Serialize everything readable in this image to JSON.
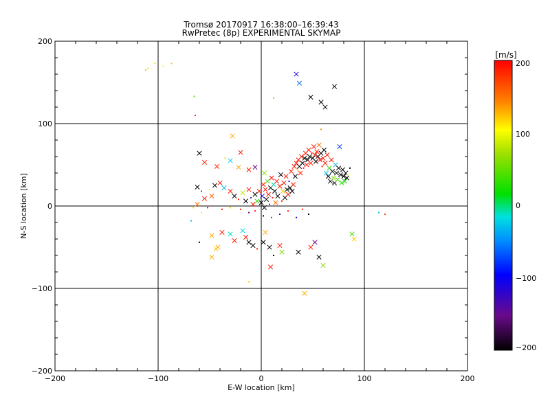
{
  "chart_data": {
    "type": "scatter",
    "title": "Tromsø 20170917 16:38:00–16:39:43",
    "subtitle": "RwPretec (8p) EXPERIMENTAL SKYMAP",
    "xlabel": "E-W location [km]",
    "ylabel": "N-S location [km]",
    "xlim": [
      -200,
      200
    ],
    "ylim": [
      -200,
      200
    ],
    "xticks": [
      "−200",
      "−100",
      "0",
      "100",
      "200"
    ],
    "yticks": [
      "−200",
      "−100",
      "0",
      "100",
      "200"
    ],
    "grid": true,
    "colorbar": {
      "label": "[m/s]",
      "range": [
        -200,
        200
      ],
      "ticks": [
        "200",
        "100",
        "0",
        "−100",
        "−200"
      ]
    },
    "points": [
      {
        "x": -112,
        "y": 165,
        "v": 120,
        "m": "dot"
      },
      {
        "x": -110,
        "y": 167,
        "v": 90,
        "m": "dot"
      },
      {
        "x": -103,
        "y": 173,
        "v": 110,
        "m": "dot"
      },
      {
        "x": -95,
        "y": 170,
        "v": 100,
        "m": "dot"
      },
      {
        "x": -87,
        "y": 173,
        "v": 120,
        "m": "dot"
      },
      {
        "x": -65,
        "y": 133,
        "v": 50,
        "m": "dot"
      },
      {
        "x": -64,
        "y": 110,
        "v": 180,
        "m": "dot"
      },
      {
        "x": 12,
        "y": 131,
        "v": 60,
        "m": "dot"
      },
      {
        "x": 34,
        "y": 160,
        "v": -110,
        "m": "x"
      },
      {
        "x": 37,
        "y": 149,
        "v": -60,
        "m": "x"
      },
      {
        "x": 48,
        "y": 132,
        "v": -200,
        "m": "x"
      },
      {
        "x": 58,
        "y": 126,
        "v": -200,
        "m": "x"
      },
      {
        "x": 62,
        "y": 120,
        "v": -200,
        "m": "x"
      },
      {
        "x": 71,
        "y": 145,
        "v": -200,
        "m": "x"
      },
      {
        "x": 58,
        "y": 93,
        "v": 140,
        "m": "dot"
      },
      {
        "x": -60,
        "y": 64,
        "v": -200,
        "m": "x"
      },
      {
        "x": -55,
        "y": 53,
        "v": 190,
        "m": "x"
      },
      {
        "x": -28,
        "y": 85,
        "v": 130,
        "m": "x"
      },
      {
        "x": -20,
        "y": 65,
        "v": 190,
        "m": "x"
      },
      {
        "x": -35,
        "y": 58,
        "v": 120,
        "m": "dot"
      },
      {
        "x": -30,
        "y": 55,
        "v": -20,
        "m": "x"
      },
      {
        "x": -43,
        "y": 48,
        "v": 190,
        "m": "x"
      },
      {
        "x": -22,
        "y": 47,
        "v": 130,
        "m": "x"
      },
      {
        "x": -12,
        "y": 44,
        "v": 190,
        "m": "x"
      },
      {
        "x": -6,
        "y": 47,
        "v": -150,
        "m": "x"
      },
      {
        "x": 3,
        "y": 40,
        "v": 60,
        "m": "x"
      },
      {
        "x": -62,
        "y": 23,
        "v": -200,
        "m": "x"
      },
      {
        "x": -58,
        "y": 18,
        "v": 190,
        "m": "dot"
      },
      {
        "x": -50,
        "y": 20,
        "v": 100,
        "m": "dot"
      },
      {
        "x": -48,
        "y": 12,
        "v": 160,
        "m": "x"
      },
      {
        "x": -55,
        "y": 9,
        "v": 190,
        "m": "x"
      },
      {
        "x": -45,
        "y": 25,
        "v": -200,
        "m": "x"
      },
      {
        "x": -40,
        "y": 28,
        "v": 190,
        "m": "x"
      },
      {
        "x": -36,
        "y": 22,
        "v": -30,
        "m": "x"
      },
      {
        "x": -30,
        "y": 18,
        "v": 190,
        "m": "x"
      },
      {
        "x": -26,
        "y": 12,
        "v": -200,
        "m": "x"
      },
      {
        "x": -22,
        "y": 8,
        "v": 190,
        "m": "dot"
      },
      {
        "x": -18,
        "y": 16,
        "v": 80,
        "m": "x"
      },
      {
        "x": -15,
        "y": 6,
        "v": -200,
        "m": "x"
      },
      {
        "x": -12,
        "y": 20,
        "v": 190,
        "m": "x"
      },
      {
        "x": -10,
        "y": 10,
        "v": -150,
        "m": "dot"
      },
      {
        "x": -8,
        "y": 2,
        "v": 190,
        "m": "x"
      },
      {
        "x": -6,
        "y": 14,
        "v": -200,
        "m": "x"
      },
      {
        "x": -4,
        "y": 6,
        "v": 30,
        "m": "x"
      },
      {
        "x": -2,
        "y": 18,
        "v": 190,
        "m": "x"
      },
      {
        "x": 0,
        "y": 4,
        "v": -200,
        "m": "x"
      },
      {
        "x": 1,
        "y": 12,
        "v": -120,
        "m": "x"
      },
      {
        "x": 2,
        "y": 26,
        "v": 190,
        "m": "x"
      },
      {
        "x": 3,
        "y": -2,
        "v": -200,
        "m": "x"
      },
      {
        "x": 4,
        "y": 20,
        "v": 190,
        "m": "x"
      },
      {
        "x": 5,
        "y": 8,
        "v": -200,
        "m": "x"
      },
      {
        "x": 6,
        "y": 30,
        "v": 40,
        "m": "x"
      },
      {
        "x": 7,
        "y": 14,
        "v": 190,
        "m": "x"
      },
      {
        "x": 8,
        "y": 2,
        "v": -80,
        "m": "dot"
      },
      {
        "x": 9,
        "y": 22,
        "v": -200,
        "m": "x"
      },
      {
        "x": 10,
        "y": 34,
        "v": 190,
        "m": "x"
      },
      {
        "x": 11,
        "y": 10,
        "v": 190,
        "m": "dot"
      },
      {
        "x": 12,
        "y": 26,
        "v": -10,
        "m": "x"
      },
      {
        "x": 13,
        "y": 18,
        "v": -200,
        "m": "x"
      },
      {
        "x": 14,
        "y": 4,
        "v": 150,
        "m": "x"
      },
      {
        "x": 15,
        "y": 30,
        "v": 190,
        "m": "x"
      },
      {
        "x": 16,
        "y": 12,
        "v": -200,
        "m": "x"
      },
      {
        "x": 18,
        "y": 24,
        "v": 190,
        "m": "x"
      },
      {
        "x": 19,
        "y": 38,
        "v": -200,
        "m": "x"
      },
      {
        "x": 20,
        "y": 6,
        "v": 190,
        "m": "dot"
      },
      {
        "x": 21,
        "y": 18,
        "v": 120,
        "m": "x"
      },
      {
        "x": 22,
        "y": 28,
        "v": 190,
        "m": "x"
      },
      {
        "x": 23,
        "y": 10,
        "v": -200,
        "m": "x"
      },
      {
        "x": 24,
        "y": 36,
        "v": 190,
        "m": "x"
      },
      {
        "x": 25,
        "y": 20,
        "v": -200,
        "m": "x"
      },
      {
        "x": 26,
        "y": 14,
        "v": 190,
        "m": "x"
      },
      {
        "x": 27,
        "y": 30,
        "v": -130,
        "m": "dot"
      },
      {
        "x": 28,
        "y": 22,
        "v": -200,
        "m": "x"
      },
      {
        "x": 29,
        "y": 42,
        "v": 190,
        "m": "x"
      },
      {
        "x": 30,
        "y": 18,
        "v": -200,
        "m": "x"
      },
      {
        "x": 31,
        "y": 26,
        "v": 190,
        "m": "x"
      },
      {
        "x": 32,
        "y": 48,
        "v": 190,
        "m": "x"
      },
      {
        "x": 33,
        "y": 36,
        "v": -200,
        "m": "x"
      },
      {
        "x": 34,
        "y": 52,
        "v": 190,
        "m": "x"
      },
      {
        "x": 35,
        "y": 44,
        "v": 120,
        "m": "dot"
      },
      {
        "x": 36,
        "y": 56,
        "v": 190,
        "m": "x"
      },
      {
        "x": 37,
        "y": 48,
        "v": -200,
        "m": "x"
      },
      {
        "x": 38,
        "y": 40,
        "v": 190,
        "m": "x"
      },
      {
        "x": 39,
        "y": 60,
        "v": 190,
        "m": "x"
      },
      {
        "x": 40,
        "y": 52,
        "v": -200,
        "m": "x"
      },
      {
        "x": 41,
        "y": 46,
        "v": 190,
        "m": "dot"
      },
      {
        "x": 42,
        "y": 58,
        "v": -200,
        "m": "x"
      },
      {
        "x": 43,
        "y": 64,
        "v": 190,
        "m": "x"
      },
      {
        "x": 44,
        "y": 50,
        "v": 190,
        "m": "x"
      },
      {
        "x": 45,
        "y": 56,
        "v": -200,
        "m": "x"
      },
      {
        "x": 46,
        "y": 68,
        "v": 190,
        "m": "x"
      },
      {
        "x": 47,
        "y": 60,
        "v": -200,
        "m": "x"
      },
      {
        "x": 48,
        "y": 52,
        "v": 190,
        "m": "x"
      },
      {
        "x": 49,
        "y": 64,
        "v": 190,
        "m": "dot"
      },
      {
        "x": 50,
        "y": 58,
        "v": -200,
        "m": "x"
      },
      {
        "x": 51,
        "y": 72,
        "v": 190,
        "m": "x"
      },
      {
        "x": 52,
        "y": 62,
        "v": 190,
        "m": "x"
      },
      {
        "x": 53,
        "y": 54,
        "v": -200,
        "m": "x"
      },
      {
        "x": 54,
        "y": 66,
        "v": 190,
        "m": "x"
      },
      {
        "x": 55,
        "y": 60,
        "v": -200,
        "m": "x"
      },
      {
        "x": 56,
        "y": 74,
        "v": 150,
        "m": "x"
      },
      {
        "x": 57,
        "y": 56,
        "v": 190,
        "m": "x"
      },
      {
        "x": 58,
        "y": 64,
        "v": -200,
        "m": "x"
      },
      {
        "x": 59,
        "y": 48,
        "v": 190,
        "m": "dot"
      },
      {
        "x": 60,
        "y": 58,
        "v": 190,
        "m": "x"
      },
      {
        "x": 61,
        "y": 68,
        "v": -200,
        "m": "x"
      },
      {
        "x": 62,
        "y": 52,
        "v": 190,
        "m": "x"
      },
      {
        "x": 63,
        "y": 40,
        "v": -30,
        "m": "x"
      },
      {
        "x": 64,
        "y": 62,
        "v": 190,
        "m": "x"
      },
      {
        "x": 65,
        "y": 36,
        "v": -200,
        "m": "x"
      },
      {
        "x": 66,
        "y": 46,
        "v": 30,
        "m": "x"
      },
      {
        "x": 67,
        "y": 30,
        "v": -200,
        "m": "x"
      },
      {
        "x": 68,
        "y": 56,
        "v": 190,
        "m": "x"
      },
      {
        "x": 69,
        "y": 42,
        "v": -200,
        "m": "x"
      },
      {
        "x": 70,
        "y": 34,
        "v": 60,
        "m": "x"
      },
      {
        "x": 71,
        "y": 28,
        "v": -200,
        "m": "x"
      },
      {
        "x": 72,
        "y": 50,
        "v": -30,
        "m": "x"
      },
      {
        "x": 73,
        "y": 40,
        "v": -200,
        "m": "x"
      },
      {
        "x": 74,
        "y": 32,
        "v": 40,
        "m": "x"
      },
      {
        "x": 75,
        "y": 46,
        "v": -200,
        "m": "x"
      },
      {
        "x": 76,
        "y": 72,
        "v": -80,
        "m": "x"
      },
      {
        "x": 77,
        "y": 38,
        "v": -200,
        "m": "x"
      },
      {
        "x": 78,
        "y": 28,
        "v": 30,
        "m": "x"
      },
      {
        "x": 79,
        "y": 44,
        "v": -200,
        "m": "x"
      },
      {
        "x": 80,
        "y": 36,
        "v": -200,
        "m": "x"
      },
      {
        "x": 81,
        "y": 30,
        "v": 20,
        "m": "x"
      },
      {
        "x": 82,
        "y": 40,
        "v": -200,
        "m": "x"
      },
      {
        "x": 83,
        "y": 34,
        "v": -200,
        "m": "x"
      },
      {
        "x": 84,
        "y": 38,
        "v": 100,
        "m": "dot"
      },
      {
        "x": 86,
        "y": 46,
        "v": -200,
        "m": "dot"
      },
      {
        "x": -66,
        "y": -2,
        "v": 110,
        "m": "dot"
      },
      {
        "x": -62,
        "y": 2,
        "v": 150,
        "m": "x"
      },
      {
        "x": -68,
        "y": -18,
        "v": -30,
        "m": "dot"
      },
      {
        "x": -58,
        "y": -8,
        "v": 110,
        "m": "dot"
      },
      {
        "x": -52,
        "y": -2,
        "v": 190,
        "m": "dot"
      },
      {
        "x": -38,
        "y": -4,
        "v": 190,
        "m": "dot"
      },
      {
        "x": -30,
        "y": -2,
        "v": 120,
        "m": "dot"
      },
      {
        "x": -20,
        "y": -4,
        "v": 190,
        "m": "dot"
      },
      {
        "x": -12,
        "y": -8,
        "v": -150,
        "m": "dot"
      },
      {
        "x": -6,
        "y": -6,
        "v": 190,
        "m": "dot"
      },
      {
        "x": 2,
        "y": -12,
        "v": -200,
        "m": "dot"
      },
      {
        "x": 10,
        "y": -14,
        "v": 190,
        "m": "dot"
      },
      {
        "x": 18,
        "y": -10,
        "v": -120,
        "m": "dot"
      },
      {
        "x": 26,
        "y": -6,
        "v": 190,
        "m": "dot"
      },
      {
        "x": 34,
        "y": -14,
        "v": -110,
        "m": "dot"
      },
      {
        "x": 40,
        "y": -4,
        "v": 190,
        "m": "dot"
      },
      {
        "x": 46,
        "y": -10,
        "v": -200,
        "m": "dot"
      },
      {
        "x": -38,
        "y": -32,
        "v": 190,
        "m": "x"
      },
      {
        "x": -60,
        "y": -44,
        "v": -200,
        "m": "dot"
      },
      {
        "x": -48,
        "y": -36,
        "v": 130,
        "m": "x"
      },
      {
        "x": -44,
        "y": -52,
        "v": 120,
        "m": "x"
      },
      {
        "x": -48,
        "y": -62,
        "v": 130,
        "m": "x"
      },
      {
        "x": -42,
        "y": -50,
        "v": 130,
        "m": "x"
      },
      {
        "x": -30,
        "y": -34,
        "v": -10,
        "m": "x"
      },
      {
        "x": -26,
        "y": -42,
        "v": 190,
        "m": "x"
      },
      {
        "x": -18,
        "y": -30,
        "v": -20,
        "m": "x"
      },
      {
        "x": -15,
        "y": -38,
        "v": 190,
        "m": "x"
      },
      {
        "x": -12,
        "y": -44,
        "v": -200,
        "m": "x"
      },
      {
        "x": -8,
        "y": -48,
        "v": -200,
        "m": "x"
      },
      {
        "x": -4,
        "y": -52,
        "v": 190,
        "m": "dot"
      },
      {
        "x": 2,
        "y": -44,
        "v": -200,
        "m": "x"
      },
      {
        "x": 4,
        "y": -32,
        "v": 130,
        "m": "x"
      },
      {
        "x": 8,
        "y": -50,
        "v": -200,
        "m": "x"
      },
      {
        "x": 9,
        "y": -74,
        "v": 190,
        "m": "x"
      },
      {
        "x": 12,
        "y": -60,
        "v": -200,
        "m": "dot"
      },
      {
        "x": 18,
        "y": -48,
        "v": 190,
        "m": "x"
      },
      {
        "x": 20,
        "y": -56,
        "v": 60,
        "m": "x"
      },
      {
        "x": -12,
        "y": -92,
        "v": 120,
        "m": "dot"
      },
      {
        "x": 36,
        "y": -56,
        "v": -200,
        "m": "x"
      },
      {
        "x": 42,
        "y": -106,
        "v": 130,
        "m": "x"
      },
      {
        "x": 48,
        "y": -50,
        "v": 190,
        "m": "x"
      },
      {
        "x": 52,
        "y": -44,
        "v": -150,
        "m": "x"
      },
      {
        "x": 56,
        "y": -62,
        "v": -200,
        "m": "x"
      },
      {
        "x": 60,
        "y": -72,
        "v": 60,
        "m": "x"
      },
      {
        "x": 88,
        "y": -34,
        "v": 40,
        "m": "x"
      },
      {
        "x": 90,
        "y": -40,
        "v": 120,
        "m": "x"
      },
      {
        "x": 114,
        "y": -8,
        "v": -30,
        "m": "dot"
      },
      {
        "x": 120,
        "y": -10,
        "v": 170,
        "m": "dot"
      }
    ]
  }
}
